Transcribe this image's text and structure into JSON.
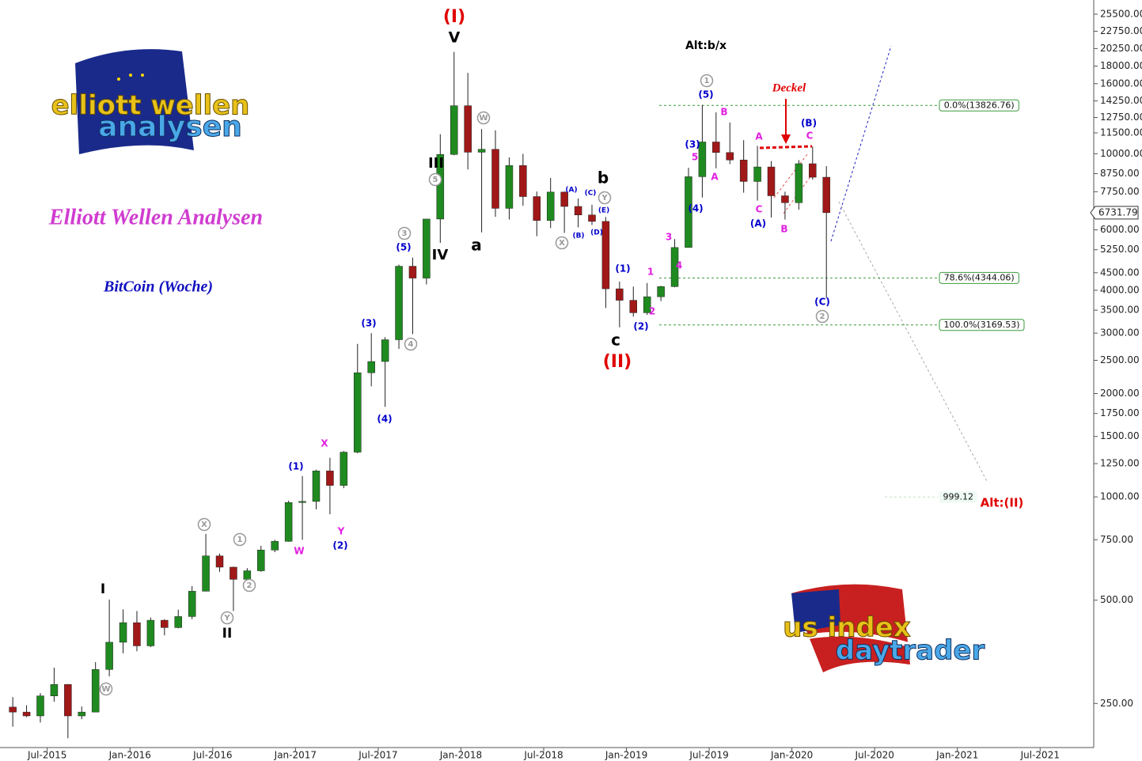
{
  "chart_data": {
    "type": "candlestick",
    "title": "Elliott Wellen Analysen",
    "subtitle": "BitCoin (Woche)",
    "log_scale": true,
    "up_color": "#1f8a1f",
    "down_color": "#a01818",
    "xlim": [
      "2015-03",
      "2021-11"
    ],
    "xticks": [
      {
        "value": "2015-07",
        "label": "Jul-2015"
      },
      {
        "value": "2016-01",
        "label": "Jan-2016"
      },
      {
        "value": "2016-07",
        "label": "Jul-2016"
      },
      {
        "value": "2017-01",
        "label": "Jan-2017"
      },
      {
        "value": "2017-07",
        "label": "Jul-2017"
      },
      {
        "value": "2018-01",
        "label": "Jan-2018"
      },
      {
        "value": "2018-07",
        "label": "Jul-2018"
      },
      {
        "value": "2019-01",
        "label": "Jan-2019"
      },
      {
        "value": "2019-07",
        "label": "Jul-2019"
      },
      {
        "value": "2020-01",
        "label": "Jan-2020"
      },
      {
        "value": "2020-07",
        "label": "Jul-2020"
      },
      {
        "value": "2021-01",
        "label": "Jan-2021"
      },
      {
        "value": "2021-07",
        "label": "Jul-2021"
      }
    ],
    "ylim": [
      186,
      28050
    ],
    "yticks": [
      {
        "value": 25500,
        "label": "25500.00"
      },
      {
        "value": 22750,
        "label": "22750.00"
      },
      {
        "value": 20250,
        "label": "20250.00"
      },
      {
        "value": 18000,
        "label": "18000.00"
      },
      {
        "value": 16000,
        "label": "16000.00"
      },
      {
        "value": 14250,
        "label": "14250.00"
      },
      {
        "value": 12750,
        "label": "12750.00"
      },
      {
        "value": 11500,
        "label": "11500.00"
      },
      {
        "value": 10000,
        "label": "10000.00"
      },
      {
        "value": 8750,
        "label": "8750.00"
      },
      {
        "value": 7750,
        "label": "7750.00"
      },
      {
        "value": 6000,
        "label": "6000.00"
      },
      {
        "value": 5250,
        "label": "5250.00"
      },
      {
        "value": 4500,
        "label": "4500.00"
      },
      {
        "value": 4000,
        "label": "4000.00"
      },
      {
        "value": 3500,
        "label": "3500.00"
      },
      {
        "value": 3000,
        "label": "3000.00"
      },
      {
        "value": 2500,
        "label": "2500.00"
      },
      {
        "value": 2000,
        "label": "2000.00"
      },
      {
        "value": 1750,
        "label": "1750.00"
      },
      {
        "value": 1500,
        "label": "1500.00"
      },
      {
        "value": 1250,
        "label": "1250.00"
      },
      {
        "value": 1000,
        "label": "1000.00"
      },
      {
        "value": 750,
        "label": "750.00"
      },
      {
        "value": 500,
        "label": "500.00"
      },
      {
        "value": 250,
        "label": "250.00"
      }
    ],
    "x": [
      "2015-04",
      "2015-05",
      "2015-06",
      "2015-07",
      "2015-08",
      "2015-09",
      "2015-10",
      "2015-11",
      "2015-12",
      "2016-01",
      "2016-02",
      "2016-03",
      "2016-04",
      "2016-05",
      "2016-06",
      "2016-07",
      "2016-08",
      "2016-09",
      "2016-10",
      "2016-11",
      "2016-12",
      "2017-01",
      "2017-02",
      "2017-03",
      "2017-04",
      "2017-05",
      "2017-06",
      "2017-07",
      "2017-08",
      "2017-09",
      "2017-10",
      "2017-11",
      "2017-12",
      "2018-01",
      "2018-02",
      "2018-03",
      "2018-04",
      "2018-05",
      "2018-06",
      "2018-07",
      "2018-08",
      "2018-09",
      "2018-10",
      "2018-11",
      "2018-12",
      "2019-01",
      "2019-02",
      "2019-03",
      "2019-04",
      "2019-05",
      "2019-06",
      "2019-07",
      "2019-08",
      "2019-09",
      "2019-10",
      "2019-11",
      "2019-12",
      "2020-01",
      "2020-02",
      "2020-03"
    ],
    "open": [
      244,
      236,
      230,
      263,
      284,
      230,
      236,
      314,
      377,
      430,
      368,
      437,
      416,
      448,
      531,
      673,
      624,
      575,
      609,
      700,
      742,
      963,
      970,
      1190,
      1080,
      1350,
      2300,
      2480,
      2870,
      4700,
      4340,
      6450,
      9950,
      13800,
      10100,
      10300,
      6930,
      9240,
      7500,
      6390,
      7730,
      7020,
      6630,
      6350,
      4040,
      3740,
      3440,
      3830,
      4100,
      5330,
      8570,
      10820,
      10080,
      9590,
      8300,
      9150,
      7540,
      7200,
      9350,
      8540
    ],
    "high": [
      261,
      247,
      268,
      318,
      285,
      245,
      330,
      502,
      470,
      465,
      445,
      440,
      469,
      550,
      780,
      683,
      626,
      620,
      720,
      750,
      975,
      1150,
      1200,
      1300,
      1360,
      2790,
      3000,
      2920,
      4750,
      4980,
      6450,
      11400,
      19800,
      17200,
      11800,
      11700,
      9750,
      9990,
      7760,
      8500,
      7760,
      7400,
      7100,
      6540,
      4240,
      4100,
      4200,
      4120,
      5640,
      9100,
      13880,
      13200,
      12330,
      10950,
      10540,
      9520,
      7750,
      9580,
      10500,
      9200
    ],
    "low": [
      214,
      228,
      220,
      253,
      198,
      225,
      236,
      300,
      350,
      355,
      365,
      395,
      414,
      440,
      530,
      605,
      465,
      570,
      605,
      690,
      740,
      750,
      920,
      890,
      1060,
      1340,
      2100,
      1830,
      2700,
      2980,
      4160,
      5500,
      9900,
      9000,
      5900,
      6550,
      6430,
      7050,
      5750,
      6070,
      5880,
      6100,
      6200,
      3550,
      3120,
      3350,
      3390,
      3720,
      4080,
      5330,
      7450,
      9070,
      9330,
      7700,
      7300,
      6520,
      6430,
      6870,
      8400,
      3800
    ],
    "close": [
      236,
      230,
      263,
      284,
      230,
      236,
      314,
      377,
      430,
      368,
      437,
      416,
      448,
      531,
      673,
      624,
      575,
      609,
      700,
      742,
      963,
      970,
      1190,
      1080,
      1350,
      2300,
      2480,
      2870,
      4700,
      4340,
      6450,
      9950,
      13800,
      10100,
      10300,
      6930,
      9240,
      7500,
      6390,
      7730,
      7020,
      6630,
      6350,
      4040,
      3740,
      3440,
      3830,
      4100,
      5330,
      8570,
      10820,
      10080,
      9590,
      8300,
      9150,
      7540,
      7200,
      9350,
      8540,
      6731.79
    ],
    "last_price": {
      "value": 6731.79,
      "label": "6731.79"
    },
    "levels": [
      {
        "value": 13826.76,
        "label": "0.0%(13826.76)"
      },
      {
        "value": 4344.06,
        "label": "78.6%(4344.06)"
      },
      {
        "value": 3169.53,
        "label": "100.0%(3169.53)"
      },
      {
        "value": 999.12,
        "label": "999.12"
      }
    ],
    "level_color": "#3a9a3a",
    "annotations": [
      {
        "text": "(I)",
        "color": "#e00000"
      },
      {
        "text": "(II)",
        "color": "#e00000"
      },
      {
        "text": "Alt:(II)",
        "color": "#e00000"
      },
      {
        "text": "V",
        "color": "#000000"
      },
      {
        "text": "III",
        "color": "#000000"
      },
      {
        "text": "IV",
        "color": "#000000"
      },
      {
        "text": "a",
        "color": "#000000"
      },
      {
        "text": "b",
        "color": "#000000"
      },
      {
        "text": "c",
        "color": "#000000"
      },
      {
        "text": "I",
        "color": "#000000"
      },
      {
        "text": "II",
        "color": "#000000"
      },
      {
        "text": "Alt:b/x",
        "color": "#000000"
      },
      {
        "text": "(5)",
        "color": "#0000cc"
      },
      {
        "text": "(3)",
        "color": "#0000cc"
      },
      {
        "text": "(4)",
        "color": "#0000cc"
      },
      {
        "text": "(B)",
        "color": "#0000cc"
      },
      {
        "text": "(A)",
        "color": "#0000cc"
      },
      {
        "text": "(C)",
        "color": "#0000cc"
      },
      {
        "text": "(1)",
        "color": "#0000cc"
      },
      {
        "text": "(2)",
        "color": "#0000cc"
      },
      {
        "text": "(3)",
        "color": "#0000cc"
      },
      {
        "text": "(5)",
        "color": "#0000cc"
      },
      {
        "text": "(4)",
        "color": "#0000cc"
      },
      {
        "text": "(1)",
        "color": "#0000cc"
      },
      {
        "text": "(2)",
        "color": "#0000cc"
      },
      {
        "text": "(A)",
        "color": "#0000cc"
      },
      {
        "text": "(C)",
        "color": "#0000cc"
      },
      {
        "text": "(E)",
        "color": "#0000cc"
      },
      {
        "text": "(B)",
        "color": "#0000cc"
      },
      {
        "text": "(D)",
        "color": "#0000cc"
      },
      {
        "text": "B",
        "color": "#e020e0"
      },
      {
        "text": "A",
        "color": "#e020e0"
      },
      {
        "text": "5",
        "color": "#e020e0"
      },
      {
        "text": "3",
        "color": "#e020e0"
      },
      {
        "text": "4",
        "color": "#e020e0"
      },
      {
        "text": "1",
        "color": "#e020e0"
      },
      {
        "text": "2",
        "color": "#e020e0"
      },
      {
        "text": "A",
        "color": "#e020e0"
      },
      {
        "text": "C",
        "color": "#e020e0"
      },
      {
        "text": "B",
        "color": "#e020e0"
      },
      {
        "text": "C",
        "color": "#e020e0"
      },
      {
        "text": "X",
        "color": "#e020e0"
      },
      {
        "text": "Y",
        "color": "#e020e0"
      },
      {
        "text": "W",
        "color": "#e020e0"
      },
      {
        "text": "1",
        "color": "#999999",
        "circled": true
      },
      {
        "text": "5",
        "color": "#999999",
        "circled": true
      },
      {
        "text": "3",
        "color": "#999999",
        "circled": true
      },
      {
        "text": "4",
        "color": "#999999",
        "circled": true
      },
      {
        "text": "W",
        "color": "#999999",
        "circled": true
      },
      {
        "text": "Y",
        "color": "#999999",
        "circled": true
      },
      {
        "text": "X",
        "color": "#999999",
        "circled": true
      },
      {
        "text": "2",
        "color": "#999999",
        "circled": true
      },
      {
        "text": "X",
        "color": "#999999",
        "circled": true
      },
      {
        "text": "1",
        "color": "#999999",
        "circled": true
      },
      {
        "text": "2",
        "color": "#999999",
        "circled": true
      },
      {
        "text": "Y",
        "color": "#999999",
        "circled": true
      },
      {
        "text": "W",
        "color": "#999999",
        "circled": true
      },
      {
        "text": "Deckel",
        "color": "#e00000"
      }
    ],
    "logos": {
      "left": [
        "elliott wellen",
        "analysen"
      ],
      "right": [
        "us index",
        "daytrader"
      ]
    }
  }
}
